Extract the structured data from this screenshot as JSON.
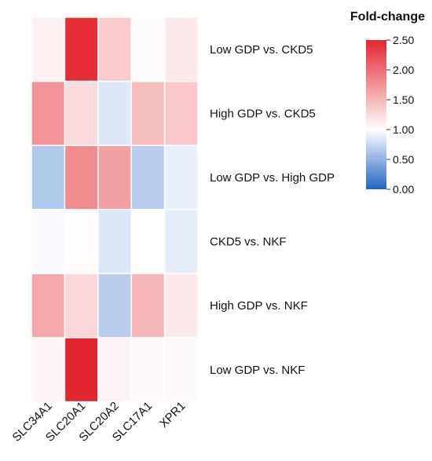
{
  "chart_data": {
    "type": "heatmap",
    "columns": [
      "SLC34A1",
      "SLC20A1",
      "SLC20A2",
      "SLC17A1",
      "XPR1"
    ],
    "rows": [
      "Low GDP vs. CKD5",
      "High GDP vs. CKD5",
      "Low GDP vs. High GDP",
      "CKD5 vs. NKF",
      "High GDP vs. NKF",
      "Low GDP vs. NKF"
    ],
    "values": [
      [
        1.1,
        2.45,
        1.35,
        1.03,
        1.15
      ],
      [
        1.75,
        1.25,
        0.85,
        1.45,
        1.38
      ],
      [
        0.65,
        1.8,
        1.65,
        0.68,
        0.9
      ],
      [
        0.97,
        1.02,
        0.84,
        1.0,
        0.88
      ],
      [
        1.6,
        1.28,
        0.68,
        1.5,
        1.15
      ],
      [
        1.06,
        2.5,
        1.08,
        1.04,
        1.04
      ]
    ],
    "color_scale": {
      "min": 0.0,
      "mid": 1.0,
      "max": 2.5,
      "low_color": "#2166c4",
      "mid_color": "#ffffff",
      "high_color": "#e3262e"
    },
    "legend": {
      "title": "Fold-change",
      "ticks": [
        "2.50",
        "2.00",
        "1.50",
        "1.00",
        "0.50",
        "0.00"
      ],
      "tick_values": [
        2.5,
        2.0,
        1.5,
        1.0,
        0.5,
        0.0
      ],
      "placement": "top-right"
    },
    "grid": true
  }
}
